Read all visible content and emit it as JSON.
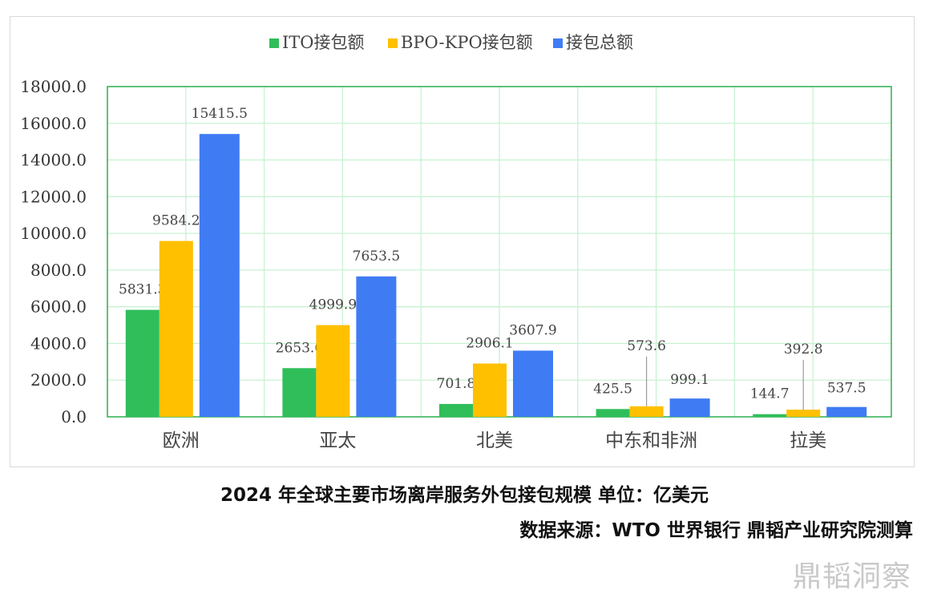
{
  "chart_data": {
    "type": "bar",
    "categories": [
      "欧洲",
      "亚太",
      "北美",
      "中东和非洲",
      "拉美"
    ],
    "series": [
      {
        "name": "ITO接包额",
        "color": "#2fbe5a",
        "values": [
          5831.3,
          2653.6,
          701.8,
          425.5,
          144.7
        ]
      },
      {
        "name": "BPO-KPO接包额",
        "color": "#ffc000",
        "values": [
          9584.2,
          4999.9,
          2906.1,
          573.6,
          392.8
        ]
      },
      {
        "name": "接包总额",
        "color": "#3f7cf4",
        "values": [
          15415.5,
          7653.5,
          3607.9,
          999.1,
          537.5
        ]
      }
    ],
    "value_labels": [
      [
        "5831.3",
        "2653.6",
        "701.8",
        "425.5",
        "144.7"
      ],
      [
        "9584.2",
        "4999.9",
        "2906.1",
        "573.6",
        "392.8"
      ],
      [
        "15415.5",
        "7653.5",
        "3607.9",
        "999.1",
        "537.5"
      ]
    ],
    "ylim": [
      0,
      18000
    ],
    "yticks": [
      "0.0",
      "2000.0",
      "4000.0",
      "6000.0",
      "8000.0",
      "10000.0",
      "12000.0",
      "14000.0",
      "16000.0",
      "18000.0"
    ],
    "grid": true,
    "legend_position": "top-center"
  },
  "caption": {
    "title": "2024 年全球主要市场离岸服务外包接包规模 单位：亿美元",
    "source": "数据来源：WTO 世界银行 鼎韬产业研究院测算"
  },
  "watermark": "鼎韬洞察"
}
